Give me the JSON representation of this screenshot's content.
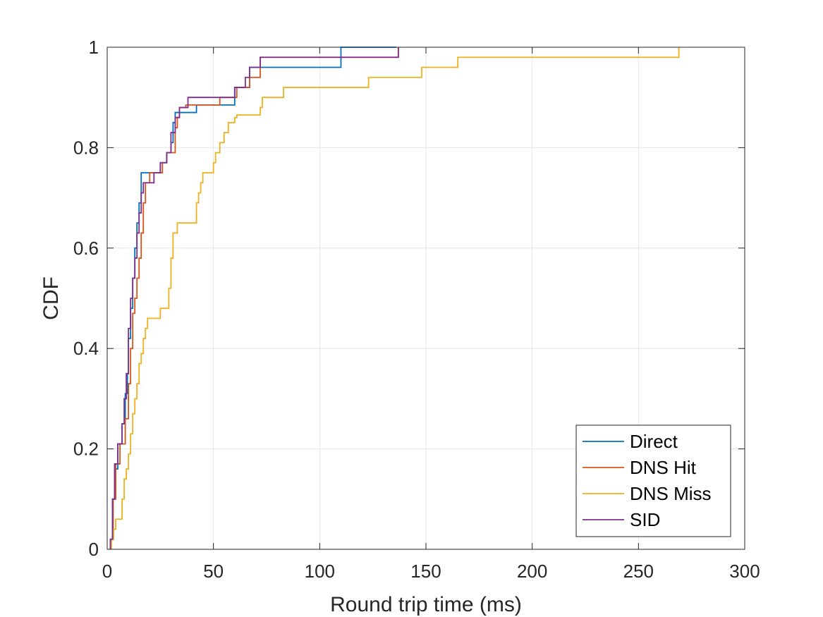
{
  "chart_data": {
    "type": "line",
    "title": "",
    "xlabel": "Round trip time (ms)",
    "ylabel": "CDF",
    "xlim": [
      0,
      300
    ],
    "ylim": [
      0,
      1
    ],
    "xticks": [
      0,
      50,
      100,
      150,
      200,
      250,
      300
    ],
    "yticks": [
      0,
      0.2,
      0.4,
      0.6,
      0.8,
      1
    ],
    "xtick_labels": [
      "0",
      "50",
      "100",
      "150",
      "200",
      "250",
      "300"
    ],
    "ytick_labels": [
      "0",
      "0.2",
      "0.4",
      "0.6",
      "0.8",
      "1"
    ],
    "grid": true,
    "legend_position": "bottom-right",
    "series": [
      {
        "name": "Direct",
        "color": "#0072BD",
        "x": [
          1.5,
          2.5,
          3.5,
          5,
          7,
          8.5,
          9.5,
          10,
          11,
          12,
          13,
          14,
          15,
          16,
          22,
          25,
          28,
          30,
          31,
          32,
          34,
          42,
          60,
          67,
          73,
          110,
          136
        ],
        "y": [
          0.02,
          0.1,
          0.16,
          0.21,
          0.25,
          0.31,
          0.35,
          0.42,
          0.48,
          0.54,
          0.6,
          0.65,
          0.69,
          0.75,
          0.75,
          0.77,
          0.79,
          0.81,
          0.85,
          0.87,
          0.87,
          0.885,
          0.92,
          0.96,
          0.96,
          1.0,
          1.0
        ]
      },
      {
        "name": "DNS Hit",
        "color": "#D95319",
        "x": [
          1.8,
          2.8,
          4,
          6,
          8.5,
          10,
          11,
          12,
          13,
          14,
          15,
          16,
          17,
          18,
          19,
          20,
          21,
          24,
          26,
          28,
          30,
          32,
          33,
          34,
          35,
          37,
          53,
          61,
          67,
          72,
          136.5,
          137
        ],
        "y": [
          0.02,
          0.1,
          0.17,
          0.21,
          0.26,
          0.33,
          0.4,
          0.47,
          0.5,
          0.54,
          0.58,
          0.63,
          0.69,
          0.73,
          0.73,
          0.75,
          0.75,
          0.75,
          0.77,
          0.79,
          0.79,
          0.84,
          0.86,
          0.88,
          0.88,
          0.885,
          0.9,
          0.92,
          0.94,
          0.98,
          0.98,
          1.0
        ]
      },
      {
        "name": "DNS Miss",
        "color": "#EDB120",
        "x": [
          2,
          3,
          4,
          5,
          7,
          8,
          9,
          10,
          11,
          12,
          13,
          14,
          15,
          16,
          17,
          18,
          19,
          20,
          25,
          28,
          29,
          30,
          31,
          33,
          42,
          43,
          44,
          45,
          46,
          50,
          51,
          52,
          53,
          55,
          57,
          60,
          61,
          62,
          72,
          73,
          74,
          76,
          83,
          123,
          148,
          165,
          269
        ],
        "y": [
          0.02,
          0.04,
          0.06,
          0.06,
          0.1,
          0.14,
          0.16,
          0.19,
          0.23,
          0.27,
          0.3,
          0.33,
          0.37,
          0.39,
          0.42,
          0.44,
          0.46,
          0.46,
          0.48,
          0.48,
          0.52,
          0.58,
          0.63,
          0.65,
          0.69,
          0.71,
          0.73,
          0.75,
          0.75,
          0.77,
          0.79,
          0.79,
          0.81,
          0.83,
          0.85,
          0.86,
          0.865,
          0.865,
          0.88,
          0.9,
          0.9,
          0.9,
          0.92,
          0.94,
          0.96,
          0.98,
          1.0
        ]
      },
      {
        "name": "SID",
        "color": "#7E2F8E",
        "x": [
          1.5,
          2.5,
          3.5,
          5,
          7,
          8,
          9,
          10,
          11,
          12,
          13,
          14,
          15,
          16,
          17,
          18,
          22,
          25,
          28,
          30,
          32,
          34,
          38,
          60,
          65,
          67,
          72,
          136,
          137
        ],
        "y": [
          0.02,
          0.1,
          0.17,
          0.21,
          0.25,
          0.3,
          0.35,
          0.44,
          0.5,
          0.54,
          0.58,
          0.63,
          0.67,
          0.71,
          0.73,
          0.73,
          0.75,
          0.77,
          0.79,
          0.83,
          0.86,
          0.88,
          0.9,
          0.92,
          0.94,
          0.96,
          0.98,
          0.98,
          1.0
        ]
      }
    ]
  }
}
